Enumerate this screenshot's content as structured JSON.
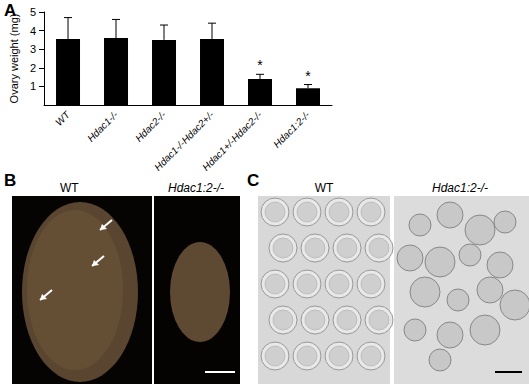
{
  "chart_data": {
    "type": "bar",
    "categories": [
      "WT",
      "Hdac1-/-",
      "Hdac2-/-",
      "Hdac1-/-Hdac2+/-",
      "Hdac1+/-Hdac2-/-",
      "Hdac1:2-/-"
    ],
    "values": [
      3.55,
      3.6,
      3.5,
      3.55,
      1.4,
      0.9
    ],
    "errors": [
      1.15,
      1.0,
      0.8,
      0.85,
      0.25,
      0.2
    ],
    "annotations": [
      null,
      null,
      null,
      null,
      "*",
      "*"
    ],
    "y_label": "Ovary weight (mg)",
    "ylim": [
      0,
      5
    ],
    "yticks": [
      1,
      2,
      3,
      4,
      5
    ],
    "color": "#000000",
    "grid": false
  },
  "panels": [
    {
      "label": "A"
    },
    {
      "label": "B",
      "captions": [
        "WT",
        "Hdac1:2-/-"
      ]
    },
    {
      "label": "C",
      "captions": [
        "WT",
        "Hdac1:2-/-"
      ]
    }
  ]
}
